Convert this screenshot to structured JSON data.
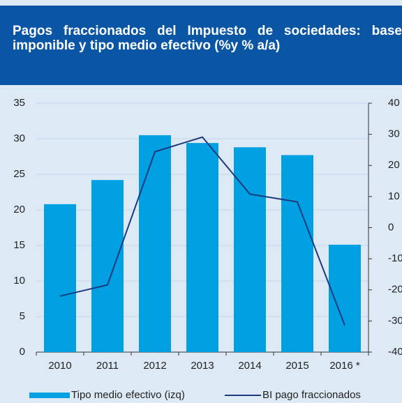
{
  "chart_data": {
    "type": "bar",
    "title": "Pagos fraccionados del Impuesto de sociedades: base imponible y tipo medio efectivo (%y % a/a)",
    "categories": [
      "2010",
      "2011",
      "2012",
      "2013",
      "2014",
      "2015",
      "2016 *"
    ],
    "series": [
      {
        "name": "Tipo medio efectivo (izq)",
        "type": "bar",
        "color": "#00a0e3",
        "values": [
          20.8,
          24.2,
          30.5,
          29.4,
          28.8,
          27.7,
          15.1
        ]
      },
      {
        "name": "BI pago fraccionados",
        "type": "line",
        "axis": "y2",
        "color": "#1c3a7e",
        "values": [
          -22,
          -18.4,
          24.4,
          29.1,
          10.8,
          8.3,
          -31.4
        ]
      }
    ],
    "ylim": [
      0,
      35
    ],
    "yticks": [
      0,
      5,
      10,
      15,
      20,
      25,
      30,
      35
    ],
    "y2lim": [
      -40,
      40
    ],
    "y2ticks": [
      -40,
      -30,
      -20,
      -10,
      0,
      10,
      20,
      30,
      40
    ],
    "grid": true
  }
}
